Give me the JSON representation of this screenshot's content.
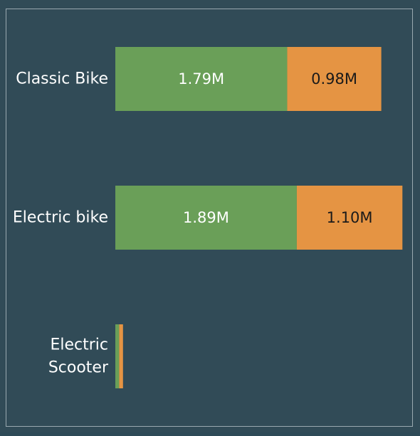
{
  "chart_data": {
    "type": "bar",
    "orientation": "horizontal",
    "stacked": true,
    "categories": [
      {
        "label_lines": [
          "Classic Bike"
        ]
      },
      {
        "label_lines": [
          "Electric bike"
        ]
      },
      {
        "label_lines": [
          "Electric",
          "Scooter"
        ]
      }
    ],
    "series": [
      {
        "color": "#6a9f58",
        "label_color": "#ffffff",
        "values": [
          1790000,
          1890000,
          40000
        ],
        "labels": [
          "1.79M",
          "1.89M",
          ""
        ]
      },
      {
        "color": "#e59443",
        "label_color": "#1a1a1a",
        "values": [
          980000,
          1100000,
          40000
        ],
        "labels": [
          "0.98M",
          "1.10M",
          ""
        ]
      }
    ],
    "xlim": [
      0,
      3010000
    ],
    "grid": false,
    "background": "#314b57",
    "text_color": "#ffffff"
  }
}
